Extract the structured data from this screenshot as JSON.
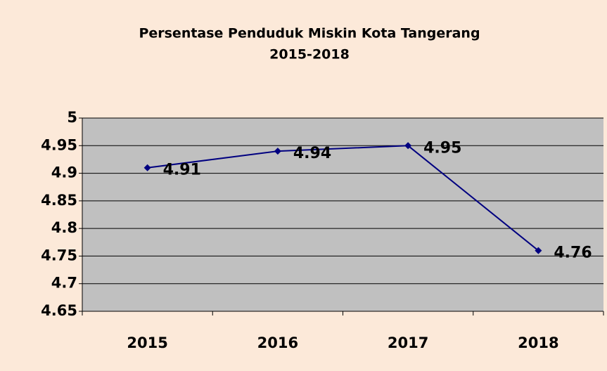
{
  "chart_data": {
    "type": "line",
    "title": "Persentase Penduduk Miskin Kota Tangerang",
    "subtitle": "2015-2018",
    "categories": [
      "2015",
      "2016",
      "2017",
      "2018"
    ],
    "series": [
      {
        "name": "Persentase Penduduk Miskin",
        "color": "#000080",
        "values": [
          4.91,
          4.94,
          4.95,
          4.76
        ]
      }
    ],
    "ylim": [
      4.65,
      5
    ],
    "yticks": [
      4.65,
      4.7,
      4.75,
      4.8,
      4.85,
      4.9,
      4.95,
      5
    ],
    "grid": true
  }
}
